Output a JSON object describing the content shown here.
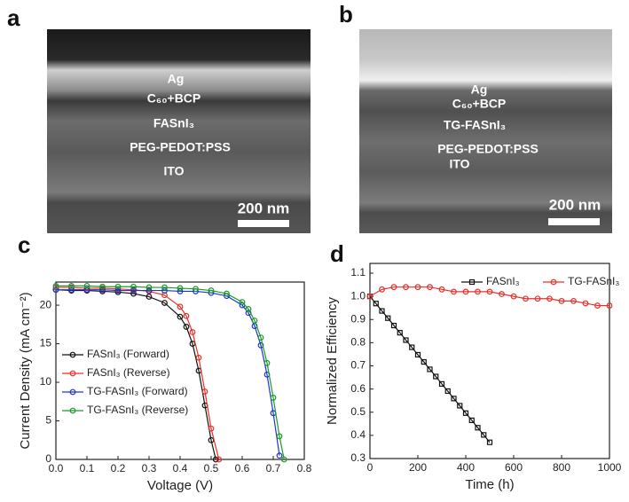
{
  "panels": [
    {
      "letter": "a",
      "layers": [
        "Ag",
        "C₆₀+BCP",
        "FASnI₃",
        "PEG-PEDOT:PSS",
        "ITO"
      ],
      "scale_bar": "200 nm"
    },
    {
      "letter": "b",
      "layers": [
        "Ag",
        "C₆₀+BCP",
        "TG-FASnI₃",
        "PEG-PEDOT:PSS",
        "ITO"
      ],
      "scale_bar": "200 nm"
    }
  ],
  "chart_data": [
    {
      "type": "line",
      "panel": "c",
      "xlabel": "Voltage (V)",
      "ylabel": "Current Density (mA cm⁻²)",
      "xlim": [
        0,
        0.8
      ],
      "xticks": [
        {
          "value": 0,
          "label": "0.0"
        },
        0.1,
        0.2,
        0.3,
        0.4,
        0.5,
        0.6,
        0.7,
        0.8
      ],
      "ylim": [
        0,
        23
      ],
      "yticks": [
        0,
        5,
        10,
        15,
        20
      ],
      "legend": "left",
      "series": [
        {
          "name": "FASnI₃ (Forward)",
          "color": "#111111",
          "marker": "circle",
          "x": [
            0,
            0.05,
            0.1,
            0.15,
            0.2,
            0.25,
            0.3,
            0.35,
            0.4,
            0.42,
            0.44,
            0.46,
            0.48,
            0.5,
            0.515
          ],
          "values": [
            22.0,
            21.9,
            21.9,
            21.8,
            21.7,
            21.5,
            21.1,
            20.3,
            18.5,
            17.2,
            15.0,
            11.5,
            7.0,
            2.5,
            0
          ]
        },
        {
          "name": "FASnI₃ (Reverse)",
          "color": "#e8302a",
          "marker": "circle",
          "x": [
            0,
            0.05,
            0.1,
            0.15,
            0.2,
            0.25,
            0.3,
            0.35,
            0.4,
            0.42,
            0.44,
            0.46,
            0.48,
            0.5,
            0.525
          ],
          "values": [
            22.3,
            22.3,
            22.2,
            22.2,
            22.1,
            22.0,
            21.8,
            21.3,
            19.8,
            18.6,
            16.5,
            13.2,
            8.8,
            4.0,
            0
          ]
        },
        {
          "name": "TG-FASnI₃ (Forward)",
          "color": "#2233cc",
          "marker": "circle",
          "x": [
            0,
            0.05,
            0.1,
            0.15,
            0.2,
            0.25,
            0.3,
            0.35,
            0.4,
            0.45,
            0.5,
            0.55,
            0.6,
            0.62,
            0.64,
            0.66,
            0.68,
            0.7,
            0.72
          ],
          "values": [
            22.0,
            22.0,
            22.0,
            22.0,
            21.9,
            21.9,
            21.9,
            21.9,
            21.8,
            21.8,
            21.6,
            21.2,
            20.0,
            19.0,
            17.3,
            14.8,
            11.0,
            6.0,
            0.5
          ]
        },
        {
          "name": "TG-FASnI₃ (Reverse)",
          "color": "#1a9a2a",
          "marker": "circle",
          "x": [
            0,
            0.05,
            0.1,
            0.15,
            0.2,
            0.25,
            0.3,
            0.35,
            0.4,
            0.45,
            0.5,
            0.55,
            0.6,
            0.62,
            0.64,
            0.66,
            0.68,
            0.7,
            0.72,
            0.735
          ],
          "values": [
            22.5,
            22.5,
            22.5,
            22.4,
            22.4,
            22.4,
            22.3,
            22.3,
            22.2,
            22.1,
            21.9,
            21.5,
            20.4,
            19.5,
            18.0,
            15.8,
            12.5,
            8.0,
            3.0,
            0
          ]
        }
      ]
    },
    {
      "type": "line",
      "panel": "d",
      "xlabel": "Time (h)",
      "ylabel": "Normalized Efficiency",
      "xlim": [
        0,
        1000
      ],
      "xticks": [
        0,
        200,
        400,
        600,
        800,
        1000
      ],
      "ylim": [
        0.3,
        1.1
      ],
      "yticks": [
        0.3,
        0.4,
        0.5,
        0.6,
        0.7,
        0.8,
        0.9,
        {
          "value": 1,
          "label": "1.0"
        },
        1.1
      ],
      "legend": "top",
      "series": [
        {
          "name": "FASnI₃",
          "color": "#111111",
          "marker": "square",
          "x": [
            0,
            25,
            50,
            75,
            100,
            125,
            150,
            175,
            200,
            225,
            250,
            275,
            300,
            325,
            350,
            375,
            400,
            425,
            450,
            475,
            500
          ],
          "values": [
            1.0,
            0.969,
            0.937,
            0.906,
            0.874,
            0.843,
            0.811,
            0.78,
            0.748,
            0.717,
            0.685,
            0.654,
            0.622,
            0.591,
            0.559,
            0.528,
            0.496,
            0.465,
            0.433,
            0.402,
            0.37
          ]
        },
        {
          "name": "TG-FASnI₃",
          "color": "#e8302a",
          "marker": "circle",
          "x": [
            0,
            50,
            100,
            150,
            200,
            250,
            300,
            350,
            400,
            450,
            500,
            550,
            600,
            650,
            700,
            750,
            800,
            850,
            900,
            950,
            1000
          ],
          "values": [
            1.0,
            1.03,
            1.04,
            1.04,
            1.04,
            1.04,
            1.03,
            1.02,
            1.02,
            1.02,
            1.02,
            1.01,
            1.0,
            0.99,
            0.99,
            0.99,
            0.98,
            0.98,
            0.97,
            0.96,
            0.96
          ]
        }
      ]
    }
  ]
}
